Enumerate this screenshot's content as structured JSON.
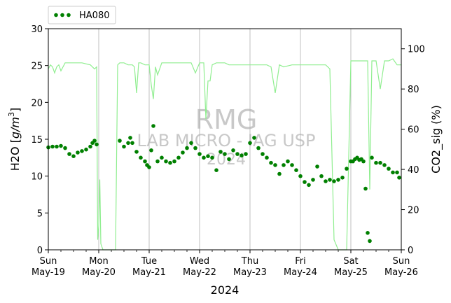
{
  "chart_data": {
    "type": "scatter",
    "x_type": "date",
    "xlim": [
      "2024-05-19T00:00",
      "2024-05-26T00:00"
    ],
    "xticks": [
      {
        "date": "2024-05-19T00:00",
        "line1": "Sun",
        "line2": "May-19"
      },
      {
        "date": "2024-05-20T00:00",
        "line1": "Mon",
        "line2": "May-20"
      },
      {
        "date": "2024-05-21T00:00",
        "line1": "Tue",
        "line2": "May-21"
      },
      {
        "date": "2024-05-22T00:00",
        "line1": "Wed",
        "line2": "May-22"
      },
      {
        "date": "2024-05-23T00:00",
        "line1": "Thu",
        "line2": "May-23"
      },
      {
        "date": "2024-05-24T00:00",
        "line1": "Fri",
        "line2": "May-24"
      },
      {
        "date": "2024-05-25T00:00",
        "line1": "Sat",
        "line2": "May-25"
      },
      {
        "date": "2024-05-26T00:00",
        "line1": "Sun",
        "line2": "May-26"
      }
    ],
    "minor_ticks_per_day": 4,
    "grid": "vertical at day ticks",
    "xlabel": "2024",
    "ylabel": "H2O [g/m³]",
    "ylabel_math": {
      "prefix": "H2O [",
      "italic": "g/m",
      "sup": "3",
      "suffix": "]"
    },
    "ylim": [
      0,
      30
    ],
    "yticks": [
      0,
      5,
      10,
      15,
      20,
      25,
      30
    ],
    "y2label": "CO2_sig (%)",
    "y2lim": [
      0,
      110
    ],
    "y2ticks": [
      0,
      20,
      40,
      60,
      80,
      100
    ],
    "legend": {
      "placement": "top-left, above plot",
      "entries": [
        "HA080"
      ]
    },
    "watermark": {
      "line1": "RMG",
      "line2": "LAB MICRO - IAG USP",
      "line3": "2024"
    },
    "colors": {
      "h2o": "#008000",
      "co2": "#90ee90",
      "grid": "#b0b0b0",
      "watermark": "#c8c8c8"
    },
    "series": [
      {
        "name": "HA080",
        "axis": "left",
        "style": "points",
        "x": [
          "2024-05-19T00:00",
          "2024-05-19T02:00",
          "2024-05-19T04:00",
          "2024-05-19T06:00",
          "2024-05-19T08:00",
          "2024-05-19T10:00",
          "2024-05-19T12:00",
          "2024-05-19T14:00",
          "2024-05-19T16:00",
          "2024-05-19T18:00",
          "2024-05-19T20:00",
          "2024-05-19T21:00",
          "2024-05-19T22:00",
          "2024-05-19T23:00",
          "2024-05-20T10:00",
          "2024-05-20T12:00",
          "2024-05-20T14:00",
          "2024-05-20T15:00",
          "2024-05-20T16:00",
          "2024-05-20T18:00",
          "2024-05-20T20:00",
          "2024-05-20T22:00",
          "2024-05-20T23:00",
          "2024-05-21T00:00",
          "2024-05-21T01:00",
          "2024-05-21T02:00",
          "2024-05-21T04:00",
          "2024-05-21T06:00",
          "2024-05-21T08:00",
          "2024-05-21T10:00",
          "2024-05-21T12:00",
          "2024-05-21T14:00",
          "2024-05-21T16:00",
          "2024-05-21T18:00",
          "2024-05-21T20:00",
          "2024-05-21T22:00",
          "2024-05-22T00:00",
          "2024-05-22T02:00",
          "2024-05-22T04:00",
          "2024-05-22T06:00",
          "2024-05-22T08:00",
          "2024-05-22T10:00",
          "2024-05-22T12:00",
          "2024-05-22T14:00",
          "2024-05-22T16:00",
          "2024-05-22T18:00",
          "2024-05-22T20:00",
          "2024-05-22T22:00",
          "2024-05-23T00:00",
          "2024-05-23T02:00",
          "2024-05-23T04:00",
          "2024-05-23T06:00",
          "2024-05-23T08:00",
          "2024-05-23T10:00",
          "2024-05-23T12:00",
          "2024-05-23T14:00",
          "2024-05-23T16:00",
          "2024-05-23T18:00",
          "2024-05-23T20:00",
          "2024-05-23T22:00",
          "2024-05-24T00:00",
          "2024-05-24T02:00",
          "2024-05-24T04:00",
          "2024-05-24T06:00",
          "2024-05-24T08:00",
          "2024-05-24T10:00",
          "2024-05-24T12:00",
          "2024-05-24T14:00",
          "2024-05-24T16:00",
          "2024-05-24T18:00",
          "2024-05-24T20:00",
          "2024-05-24T22:00",
          "2024-05-25T00:00",
          "2024-05-25T01:00",
          "2024-05-25T02:00",
          "2024-05-25T03:00",
          "2024-05-25T04:00",
          "2024-05-25T05:00",
          "2024-05-25T06:00",
          "2024-05-25T07:00",
          "2024-05-25T08:00",
          "2024-05-25T09:00",
          "2024-05-25T10:00",
          "2024-05-25T12:00",
          "2024-05-25T14:00",
          "2024-05-25T16:00",
          "2024-05-25T18:00",
          "2024-05-25T20:00",
          "2024-05-25T22:00",
          "2024-05-25T23:00"
        ],
        "y": [
          13.9,
          14.0,
          14.0,
          14.1,
          13.8,
          13.0,
          12.7,
          13.2,
          13.4,
          13.6,
          14.0,
          14.5,
          14.8,
          14.3,
          14.8,
          14.0,
          14.5,
          15.2,
          14.5,
          13.3,
          12.5,
          12.0,
          11.5,
          11.2,
          13.5,
          16.8,
          12.0,
          12.5,
          12.0,
          11.8,
          12.0,
          12.5,
          13.2,
          13.8,
          14.5,
          13.8,
          13.0,
          12.5,
          12.7,
          12.5,
          10.8,
          13.3,
          13.0,
          12.3,
          13.5,
          13.0,
          12.8,
          13.0,
          14.5,
          15.2,
          13.8,
          13.0,
          12.5,
          11.8,
          11.5,
          10.3,
          11.5,
          12.0,
          11.5,
          10.8,
          10.0,
          9.2,
          8.8,
          9.5,
          11.3,
          10.0,
          9.3,
          9.5,
          9.3,
          9.5,
          9.8,
          11.0,
          12.0,
          12.0,
          12.3,
          12.5,
          12.2,
          12.3,
          12.0,
          8.3,
          2.3,
          1.2,
          12.5,
          11.8,
          11.8,
          11.5,
          11.0,
          10.5,
          10.5,
          9.8
        ]
      },
      {
        "name": "CO2_sig",
        "axis": "right",
        "style": "line",
        "x": [
          "2024-05-19T00:00",
          "2024-05-19T01:00",
          "2024-05-19T02:00",
          "2024-05-19T03:00",
          "2024-05-19T04:00",
          "2024-05-19T05:00",
          "2024-05-19T06:00",
          "2024-05-19T08:00",
          "2024-05-19T12:00",
          "2024-05-19T16:00",
          "2024-05-19T20:00",
          "2024-05-19T22:00",
          "2024-05-19T23:00",
          "2024-05-19T23:30",
          "2024-05-20T00:00",
          "2024-05-20T00:30",
          "2024-05-20T01:00",
          "2024-05-20T02:00",
          "2024-05-20T04:00",
          "2024-05-20T06:00",
          "2024-05-20T08:00",
          "2024-05-20T09:00",
          "2024-05-20T10:00",
          "2024-05-20T12:00",
          "2024-05-20T14:00",
          "2024-05-20T16:00",
          "2024-05-20T17:00",
          "2024-05-20T18:00",
          "2024-05-20T19:00",
          "2024-05-20T20:00",
          "2024-05-20T22:00",
          "2024-05-21T00:00",
          "2024-05-21T01:00",
          "2024-05-21T02:00",
          "2024-05-21T03:00",
          "2024-05-21T04:00",
          "2024-05-21T06:00",
          "2024-05-21T08:00",
          "2024-05-21T12:00",
          "2024-05-21T16:00",
          "2024-05-21T20:00",
          "2024-05-21T22:00",
          "2024-05-22T00:00",
          "2024-05-22T02:00",
          "2024-05-22T03:00",
          "2024-05-22T04:00",
          "2024-05-22T05:00",
          "2024-05-22T06:00",
          "2024-05-22T08:00",
          "2024-05-22T10:00",
          "2024-05-22T12:00",
          "2024-05-22T14:00",
          "2024-05-22T16:00",
          "2024-05-22T20:00",
          "2024-05-23T00:00",
          "2024-05-23T04:00",
          "2024-05-23T08:00",
          "2024-05-23T10:00",
          "2024-05-23T12:00",
          "2024-05-23T14:00",
          "2024-05-23T16:00",
          "2024-05-23T20:00",
          "2024-05-24T00:00",
          "2024-05-24T04:00",
          "2024-05-24T08:00",
          "2024-05-24T12:00",
          "2024-05-24T14:00",
          "2024-05-24T16:00",
          "2024-05-24T18:00",
          "2024-05-24T20:00",
          "2024-05-24T22:00",
          "2024-05-25T00:00",
          "2024-05-25T01:00",
          "2024-05-25T02:00",
          "2024-05-25T04:00",
          "2024-05-25T06:00",
          "2024-05-25T08:00",
          "2024-05-25T09:00",
          "2024-05-25T10:00",
          "2024-05-25T12:00",
          "2024-05-25T14:00",
          "2024-05-25T16:00",
          "2024-05-25T18:00",
          "2024-05-25T20:00",
          "2024-05-25T22:00",
          "2024-05-26T00:00"
        ],
        "y": [
          90,
          92,
          91,
          88,
          91,
          92,
          89,
          93,
          93,
          93,
          92,
          90,
          91,
          5,
          12,
          35,
          3,
          0,
          0,
          0,
          0,
          92,
          93,
          93,
          92,
          92,
          91,
          78,
          93,
          93,
          92,
          92,
          82,
          75,
          91,
          87,
          93,
          93,
          93,
          93,
          93,
          88,
          93,
          93,
          65,
          84,
          84,
          92,
          93,
          93,
          93,
          92,
          92,
          92,
          92,
          92,
          92,
          91,
          78,
          92,
          91,
          92,
          92,
          92,
          92,
          92,
          90,
          5,
          0,
          0,
          0,
          94,
          94,
          94,
          94,
          94,
          94,
          30,
          94,
          94,
          80,
          94,
          94,
          95,
          92,
          92
        ]
      }
    ]
  }
}
